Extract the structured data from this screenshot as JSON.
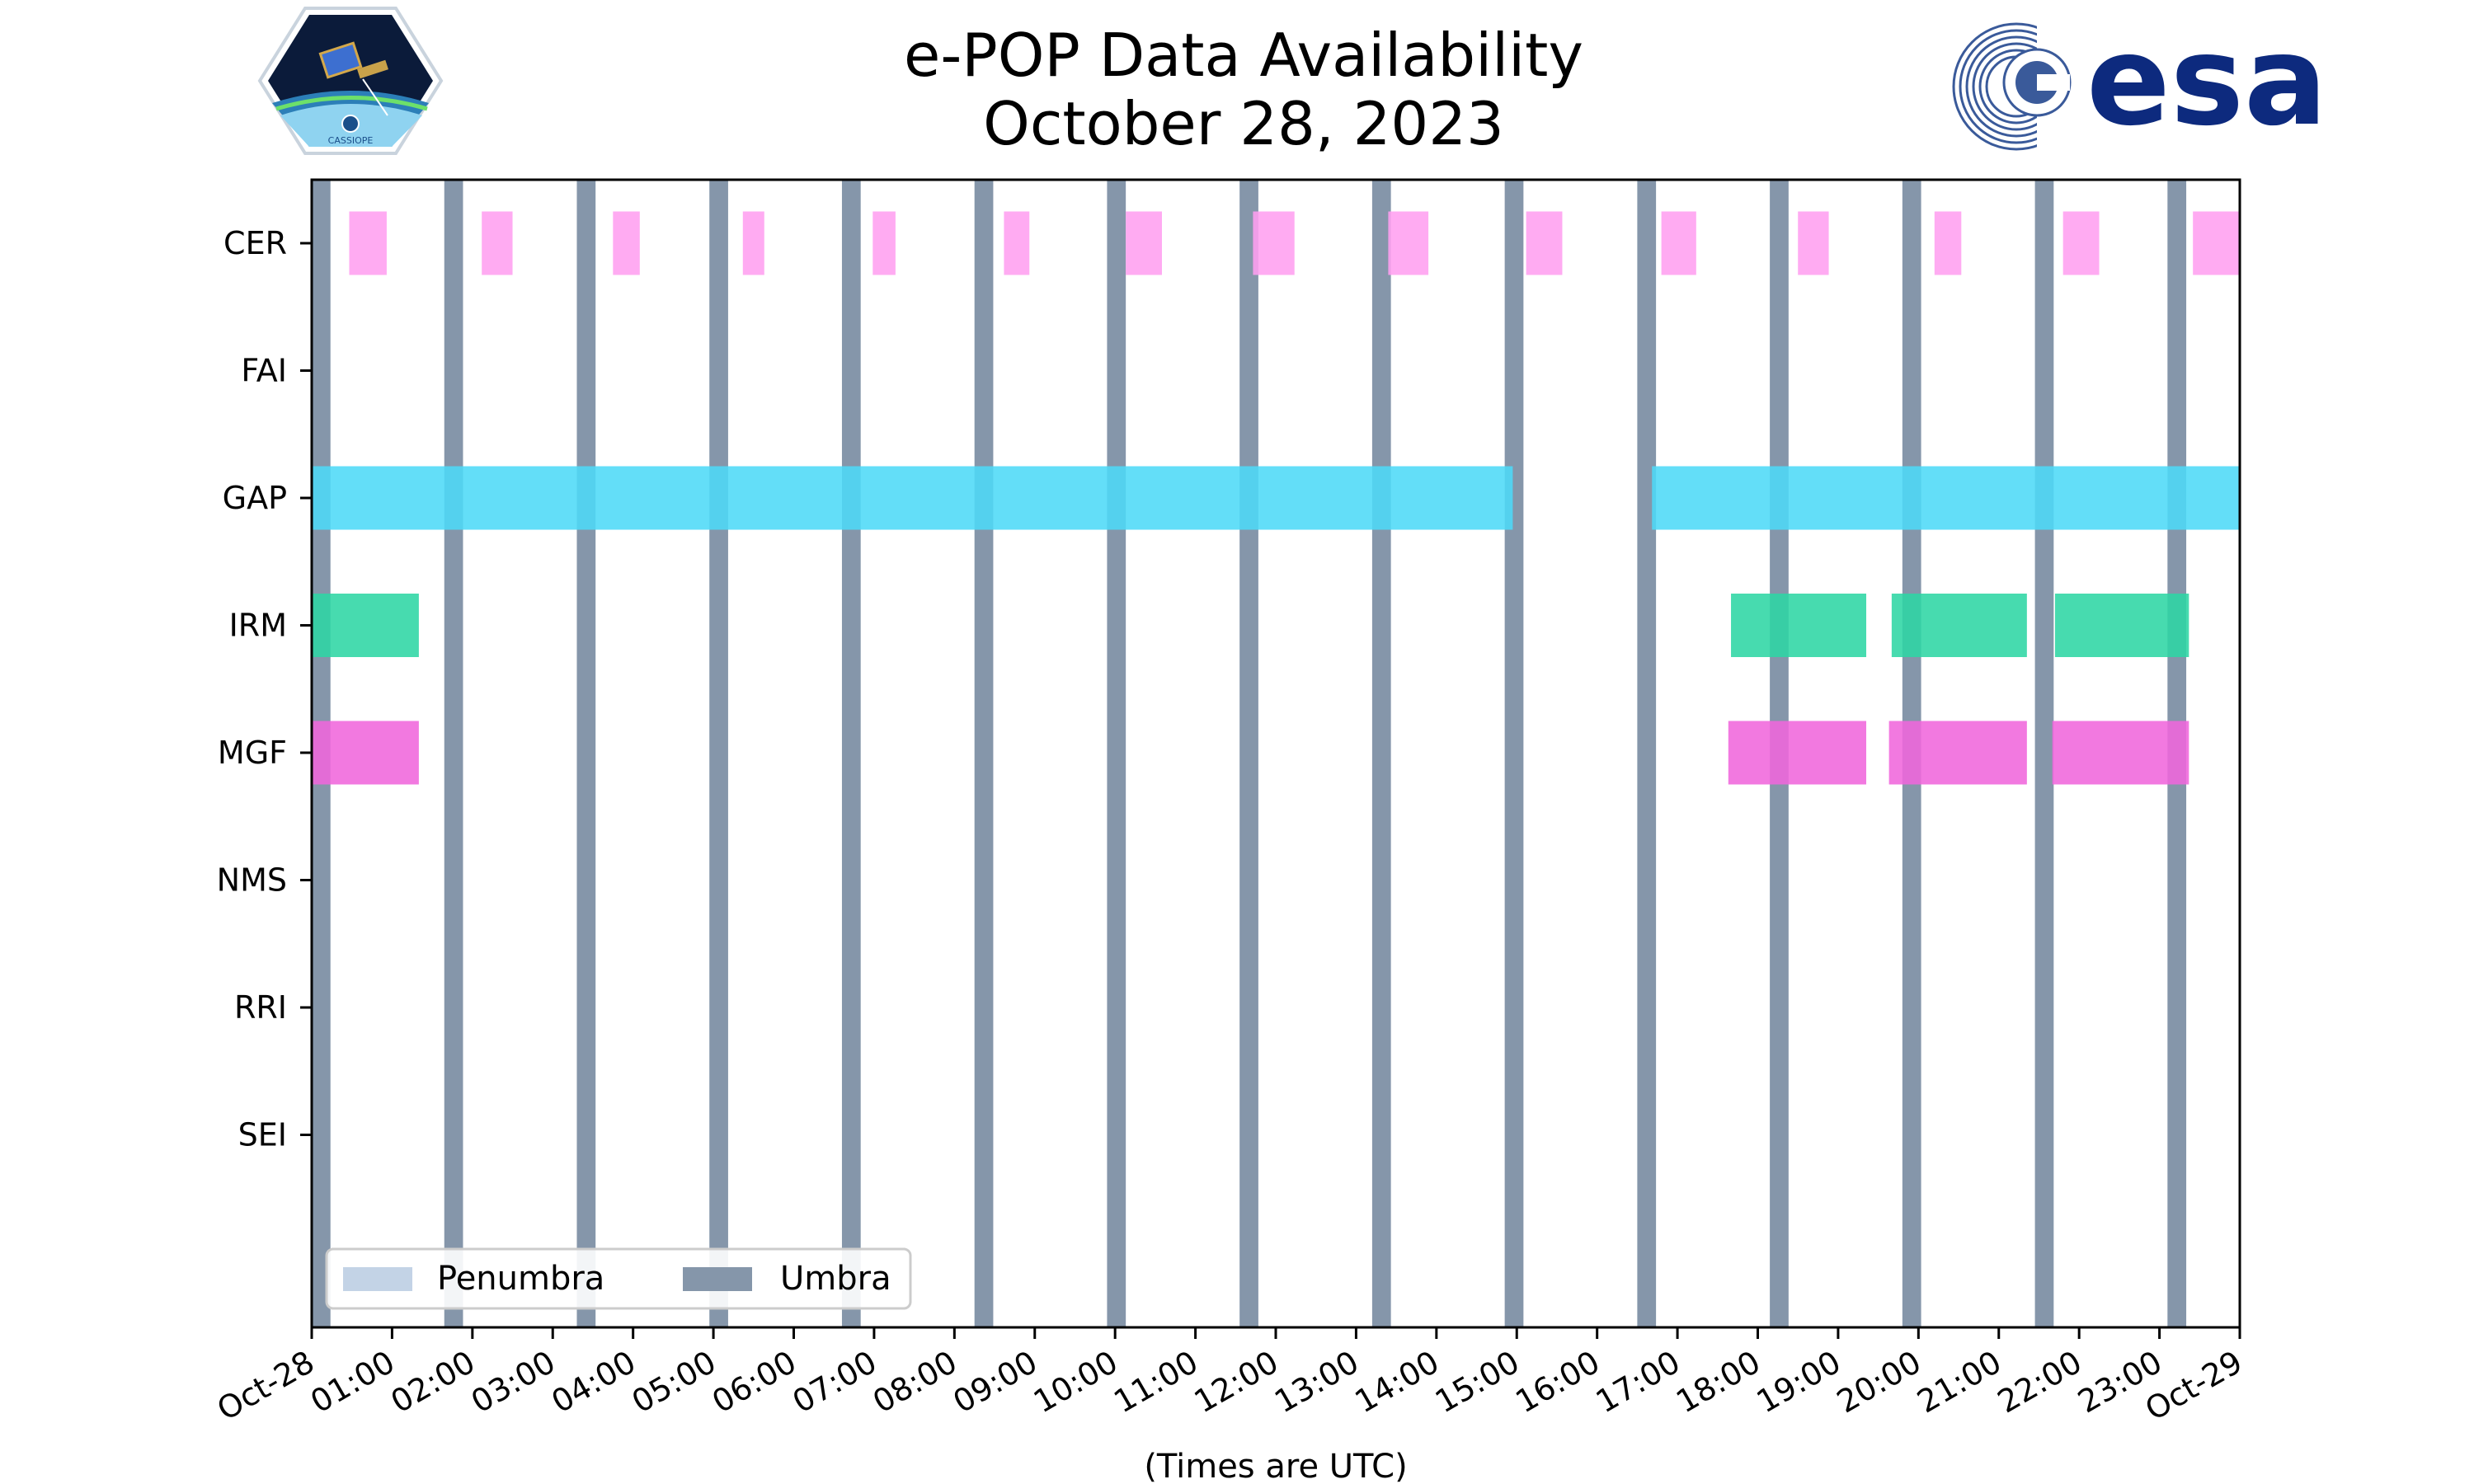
{
  "chart_data": {
    "type": "timeline",
    "title": [
      "e-POP Data Availability",
      "October 28, 2023"
    ],
    "xlabel": "(Times are UTC)",
    "xlim": [
      "2023-10-28 00:00",
      "2023-10-29 00:00"
    ],
    "x_tick_labels": [
      "Oct-28",
      "01:00",
      "02:00",
      "03:00",
      "04:00",
      "05:00",
      "06:00",
      "07:00",
      "08:00",
      "09:00",
      "10:00",
      "11:00",
      "12:00",
      "13:00",
      "14:00",
      "15:00",
      "16:00",
      "17:00",
      "18:00",
      "19:00",
      "20:00",
      "21:00",
      "22:00",
      "23:00",
      "Oct-29"
    ],
    "y_categories": [
      "CER",
      "FAI",
      "GAP",
      "IRM",
      "MGF",
      "NMS",
      "RRI",
      "SEI"
    ],
    "instruments": [
      {
        "name": "CER",
        "color": "#ff9ff0",
        "intervals": [
          [
            "00:28",
            "00:56"
          ],
          [
            "02:07",
            "02:30"
          ],
          [
            "03:45",
            "04:05"
          ],
          [
            "05:22",
            "05:38"
          ],
          [
            "06:59",
            "07:16"
          ],
          [
            "08:37",
            "08:56"
          ],
          [
            "10:08",
            "10:35"
          ],
          [
            "11:43",
            "12:14"
          ],
          [
            "13:24",
            "13:54"
          ],
          [
            "15:07",
            "15:34"
          ],
          [
            "16:48",
            "17:14"
          ],
          [
            "18:30",
            "18:53"
          ],
          [
            "20:12",
            "20:32"
          ],
          [
            "21:48",
            "22:15"
          ],
          [
            "23:25",
            "24:00"
          ]
        ]
      },
      {
        "name": "FAI",
        "color": "#8888ff",
        "intervals": []
      },
      {
        "name": "GAP",
        "color": "#4dd9f7",
        "intervals": [
          [
            "00:00",
            "14:57"
          ],
          [
            "16:41",
            "24:00"
          ]
        ]
      },
      {
        "name": "IRM",
        "color": "#2ed6a4",
        "intervals": [
          [
            "00:00",
            "01:20"
          ],
          [
            "17:40",
            "19:21"
          ],
          [
            "19:40",
            "21:21"
          ],
          [
            "21:42",
            "23:22"
          ]
        ]
      },
      {
        "name": "MGF",
        "color": "#f067dc",
        "intervals": [
          [
            "00:00",
            "01:20"
          ],
          [
            "17:38",
            "19:21"
          ],
          [
            "19:38",
            "21:21"
          ],
          [
            "21:40",
            "23:22"
          ]
        ]
      },
      {
        "name": "NMS",
        "color": "#888888",
        "intervals": []
      },
      {
        "name": "RRI",
        "color": "#888888",
        "intervals": []
      },
      {
        "name": "SEI",
        "color": "#888888",
        "intervals": []
      }
    ],
    "umbra": {
      "color": "#8596aa",
      "intervals": [
        [
          "00:00",
          "00:14"
        ],
        [
          "01:39",
          "01:53"
        ],
        [
          "03:18",
          "03:32"
        ],
        [
          "04:57",
          "05:11"
        ],
        [
          "06:36",
          "06:50"
        ],
        [
          "08:15",
          "08:29"
        ],
        [
          "09:54",
          "10:08"
        ],
        [
          "11:33",
          "11:47"
        ],
        [
          "13:12",
          "13:26"
        ],
        [
          "14:51",
          "15:05"
        ],
        [
          "16:30",
          "16:44"
        ],
        [
          "18:09",
          "18:23"
        ],
        [
          "19:48",
          "20:02"
        ],
        [
          "21:27",
          "21:41"
        ],
        [
          "23:06",
          "23:20"
        ]
      ]
    },
    "penumbra": {
      "color": "#c3d3e6",
      "intervals": []
    },
    "legend": {
      "position": "lower-left",
      "entries": [
        "Penumbra",
        "Umbra"
      ]
    }
  },
  "logos": {
    "left": "CASSIOPE",
    "right": "esa"
  }
}
